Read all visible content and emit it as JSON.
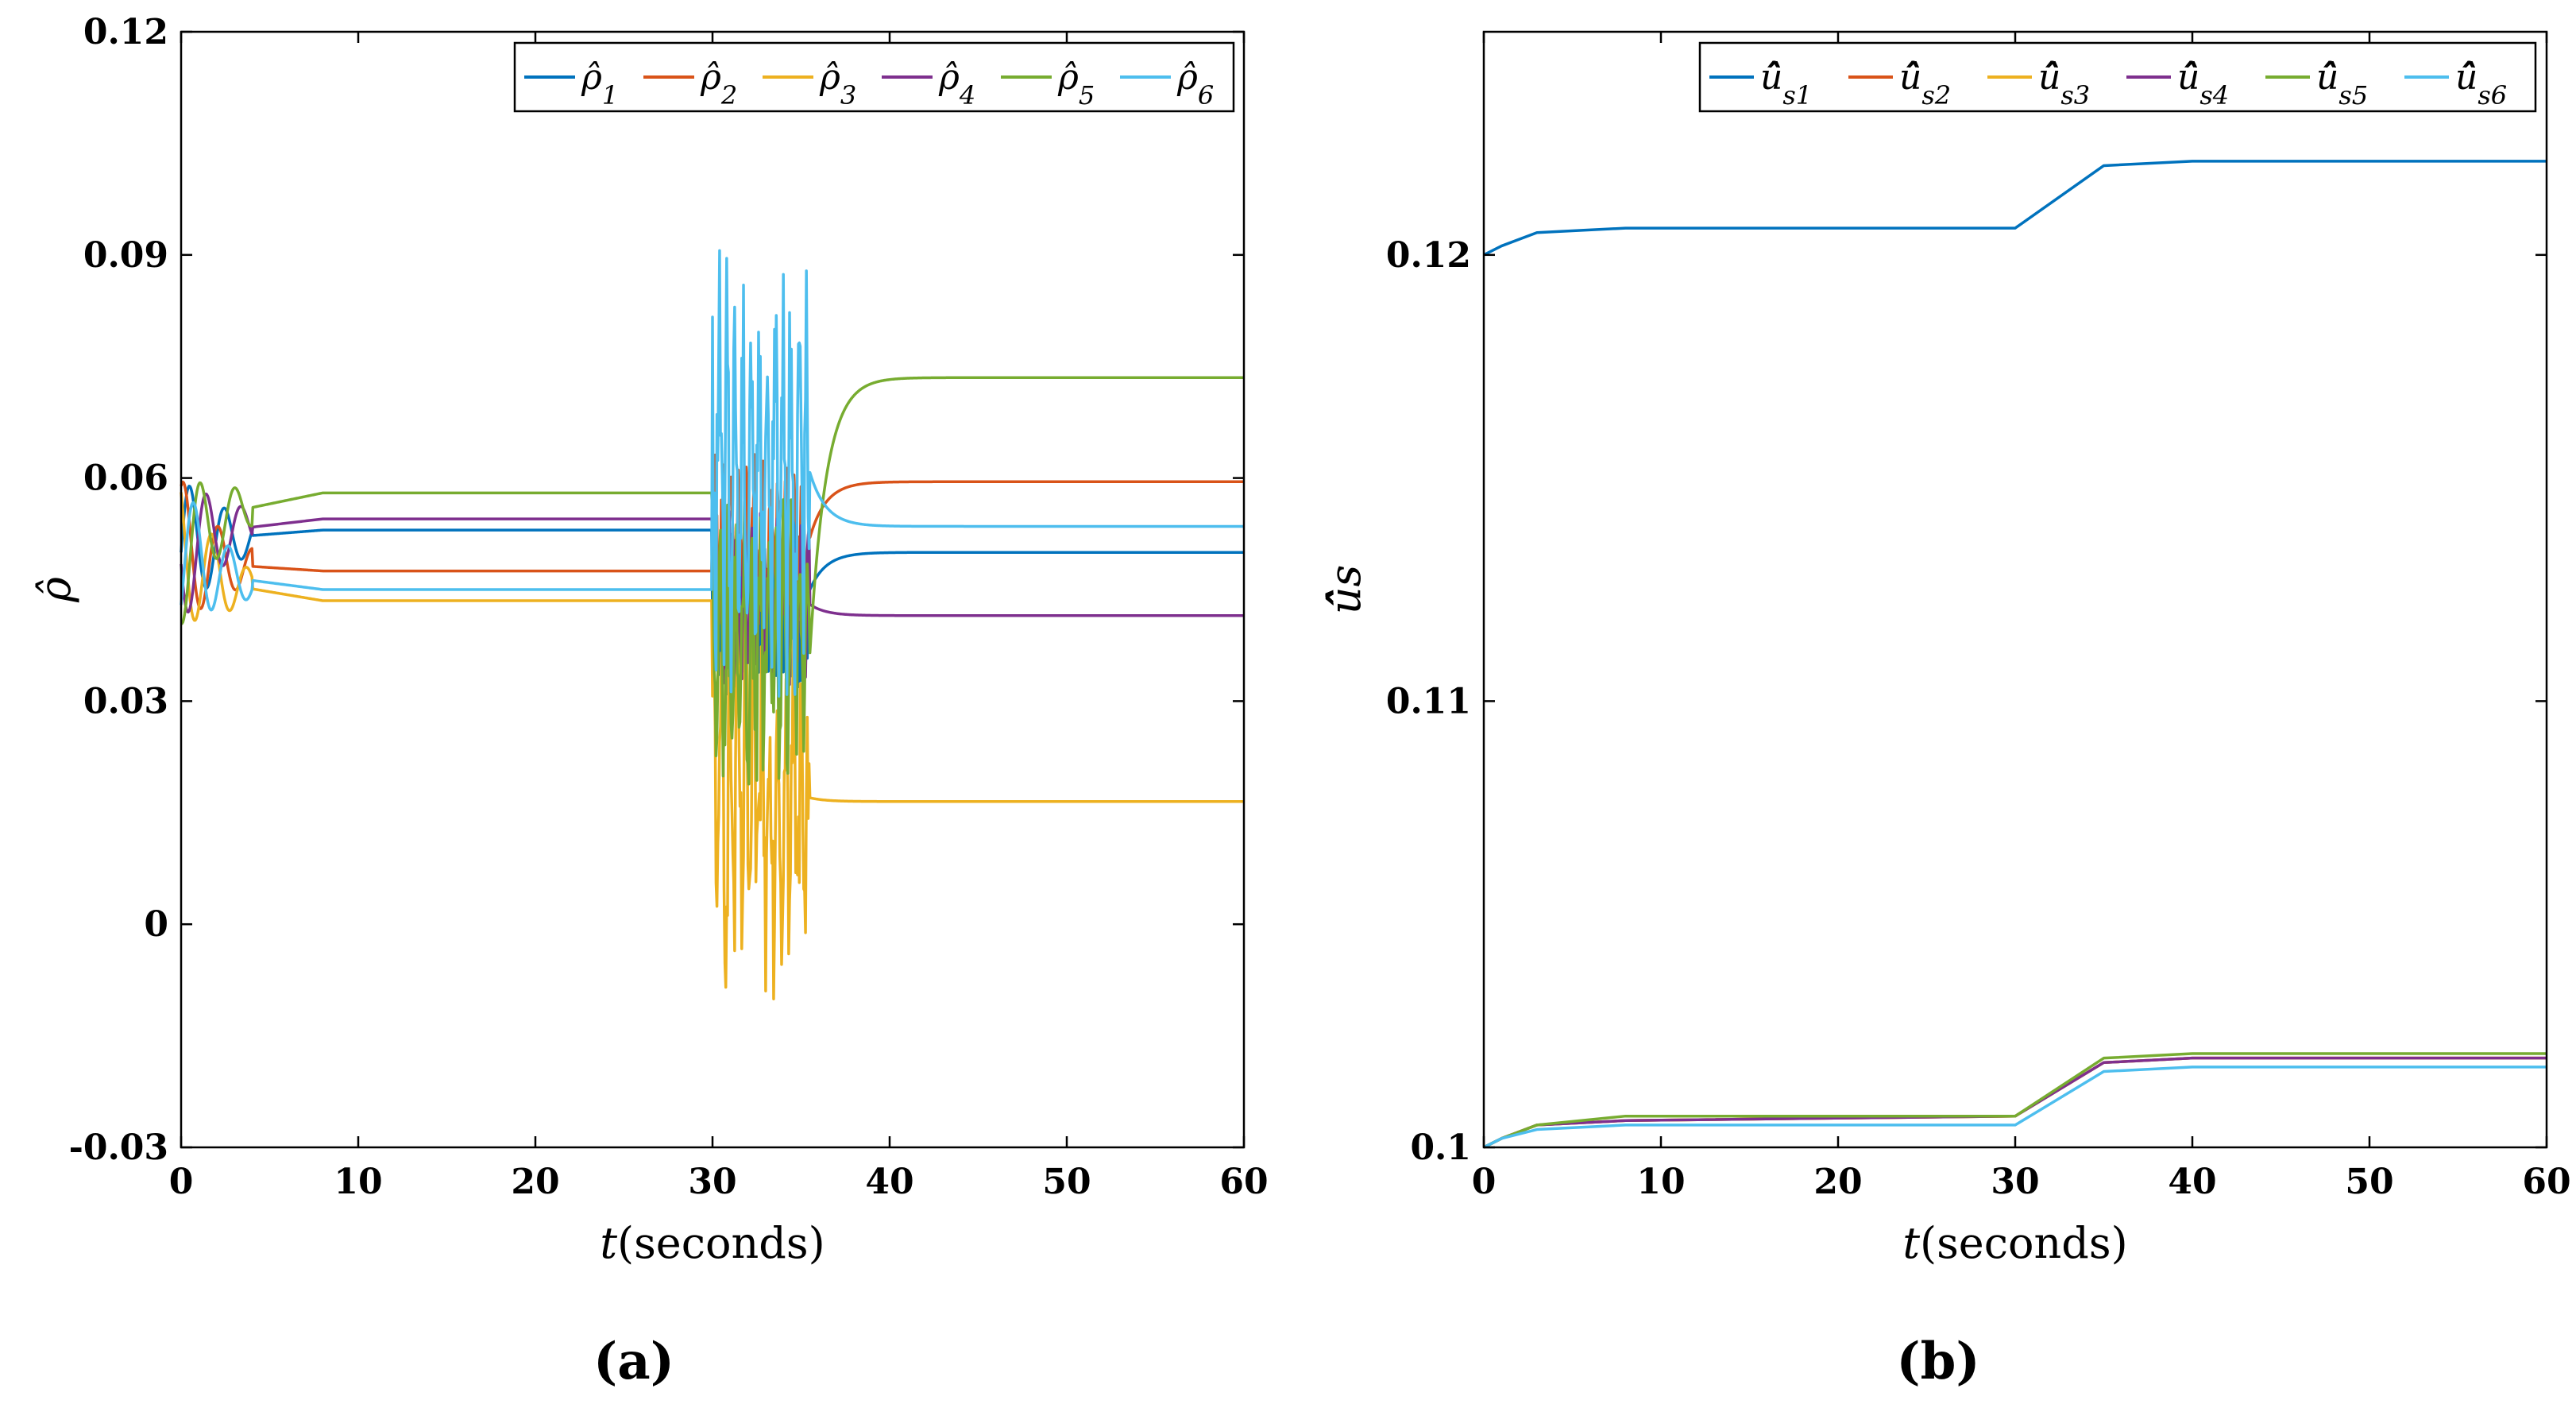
{
  "chart_data": [
    {
      "type": "line",
      "panel_label": "(a)",
      "xlabel": "t(seconds)",
      "xlabel_var": "t",
      "xlabel_unit": "(seconds)",
      "ylabel": "ρ̂",
      "xlim": [
        0,
        60
      ],
      "ylim": [
        -0.03,
        0.12
      ],
      "xticks": [
        0,
        10,
        20,
        30,
        40,
        50,
        60
      ],
      "xtick_labels": [
        "0",
        "10",
        "20",
        "30",
        "40",
        "50",
        "60"
      ],
      "yticks": [
        -0.03,
        0,
        0.03,
        0.06,
        0.09,
        0.12
      ],
      "ytick_labels": [
        "-0.03",
        "0",
        "0.03",
        "0.06",
        "0.09",
        "0.12"
      ],
      "grid": false,
      "legend_position": "top-right",
      "series": [
        {
          "name": "ρ̂1",
          "label_base": "ρ̂",
          "label_sub": "1",
          "color": "#0072BD",
          "settle1": 0.053,
          "settle2": 0.05,
          "burst_lo": 0.03,
          "burst_hi": 0.06
        },
        {
          "name": "ρ̂2",
          "label_base": "ρ̂",
          "label_sub": "2",
          "color": "#D95319",
          "settle1": 0.0475,
          "settle2": 0.0595,
          "burst_lo": 0.04,
          "burst_hi": 0.064
        },
        {
          "name": "ρ̂3",
          "label_base": "ρ̂",
          "label_sub": "3",
          "color": "#EDB120",
          "settle1": 0.0435,
          "settle2": 0.0165,
          "burst_lo": -0.011,
          "burst_hi": 0.045
        },
        {
          "name": "ρ̂4",
          "label_base": "ρ̂",
          "label_sub": "4",
          "color": "#7E2F8E",
          "settle1": 0.0545,
          "settle2": 0.0415,
          "burst_lo": 0.03,
          "burst_hi": 0.056
        },
        {
          "name": "ρ̂5",
          "label_base": "ρ̂",
          "label_sub": "5",
          "color": "#77AC30",
          "settle1": 0.058,
          "settle2": 0.0735,
          "burst_lo": 0.015,
          "burst_hi": 0.058
        },
        {
          "name": "ρ̂6",
          "label_base": "ρ̂",
          "label_sub": "6",
          "color": "#4DBEEE",
          "settle1": 0.045,
          "settle2": 0.0535,
          "burst_lo": 0.03,
          "burst_hi": 0.0915
        }
      ]
    },
    {
      "type": "line",
      "panel_label": "(b)",
      "xlabel": "t(seconds)",
      "xlabel_var": "t",
      "xlabel_unit": "(seconds)",
      "ylabel": "û̂s",
      "xlim": [
        0,
        60
      ],
      "ylim": [
        0.1,
        0.125
      ],
      "xticks": [
        0,
        10,
        20,
        30,
        40,
        50,
        60
      ],
      "xtick_labels": [
        "0",
        "10",
        "20",
        "30",
        "40",
        "50",
        "60"
      ],
      "yticks": [
        0.1,
        0.11,
        0.12
      ],
      "ytick_labels": [
        "0.1",
        "0.11",
        "0.12"
      ],
      "grid": false,
      "legend_position": "top-right",
      "series": [
        {
          "name": "û̂s1",
          "label_base": "û̂",
          "label_sub": "s1",
          "color": "#0072BD",
          "points": [
            [
              0,
              0.12
            ],
            [
              1,
              0.1202
            ],
            [
              3,
              0.1205
            ],
            [
              8,
              0.1206
            ],
            [
              30,
              0.1206
            ],
            [
              35,
              0.122
            ],
            [
              40,
              0.1221
            ],
            [
              60,
              0.1221
            ]
          ]
        },
        {
          "name": "û̂s2",
          "label_base": "û̂",
          "label_sub": "s2",
          "color": "#D95319",
          "points": [
            [
              0,
              0.1
            ],
            [
              1,
              0.1002
            ],
            [
              3,
              0.1005
            ],
            [
              8,
              0.1006
            ],
            [
              30,
              0.1007
            ],
            [
              35,
              0.1019
            ],
            [
              40,
              0.102
            ],
            [
              60,
              0.102
            ]
          ]
        },
        {
          "name": "û̂s3",
          "label_base": "û̂",
          "label_sub": "s3",
          "color": "#EDB120",
          "points": [
            [
              0,
              0.1
            ],
            [
              1,
              0.1002
            ],
            [
              3,
              0.1005
            ],
            [
              8,
              0.1006
            ],
            [
              30,
              0.1007
            ],
            [
              35,
              0.1019
            ],
            [
              40,
              0.102
            ],
            [
              60,
              0.102
            ]
          ]
        },
        {
          "name": "û̂s4",
          "label_base": "û̂",
          "label_sub": "s4",
          "color": "#7E2F8E",
          "points": [
            [
              0,
              0.1
            ],
            [
              1,
              0.1002
            ],
            [
              3,
              0.1005
            ],
            [
              8,
              0.1006
            ],
            [
              30,
              0.1007
            ],
            [
              35,
              0.1019
            ],
            [
              40,
              0.102
            ],
            [
              60,
              0.102
            ]
          ]
        },
        {
          "name": "û̂s5",
          "label_base": "û̂",
          "label_sub": "s5",
          "color": "#77AC30",
          "points": [
            [
              0,
              0.1
            ],
            [
              1,
              0.1002
            ],
            [
              3,
              0.1005
            ],
            [
              8,
              0.1007
            ],
            [
              30,
              0.1007
            ],
            [
              35,
              0.102
            ],
            [
              40,
              0.1021
            ],
            [
              60,
              0.1021
            ]
          ]
        },
        {
          "name": "û̂s6",
          "label_base": "û̂",
          "label_sub": "s6",
          "color": "#4DBEEE",
          "points": [
            [
              0,
              0.1
            ],
            [
              1,
              0.1002
            ],
            [
              3,
              0.1004
            ],
            [
              8,
              0.1005
            ],
            [
              30,
              0.1005
            ],
            [
              35,
              0.1017
            ],
            [
              40,
              0.1018
            ],
            [
              60,
              0.1018
            ]
          ]
        }
      ]
    }
  ]
}
